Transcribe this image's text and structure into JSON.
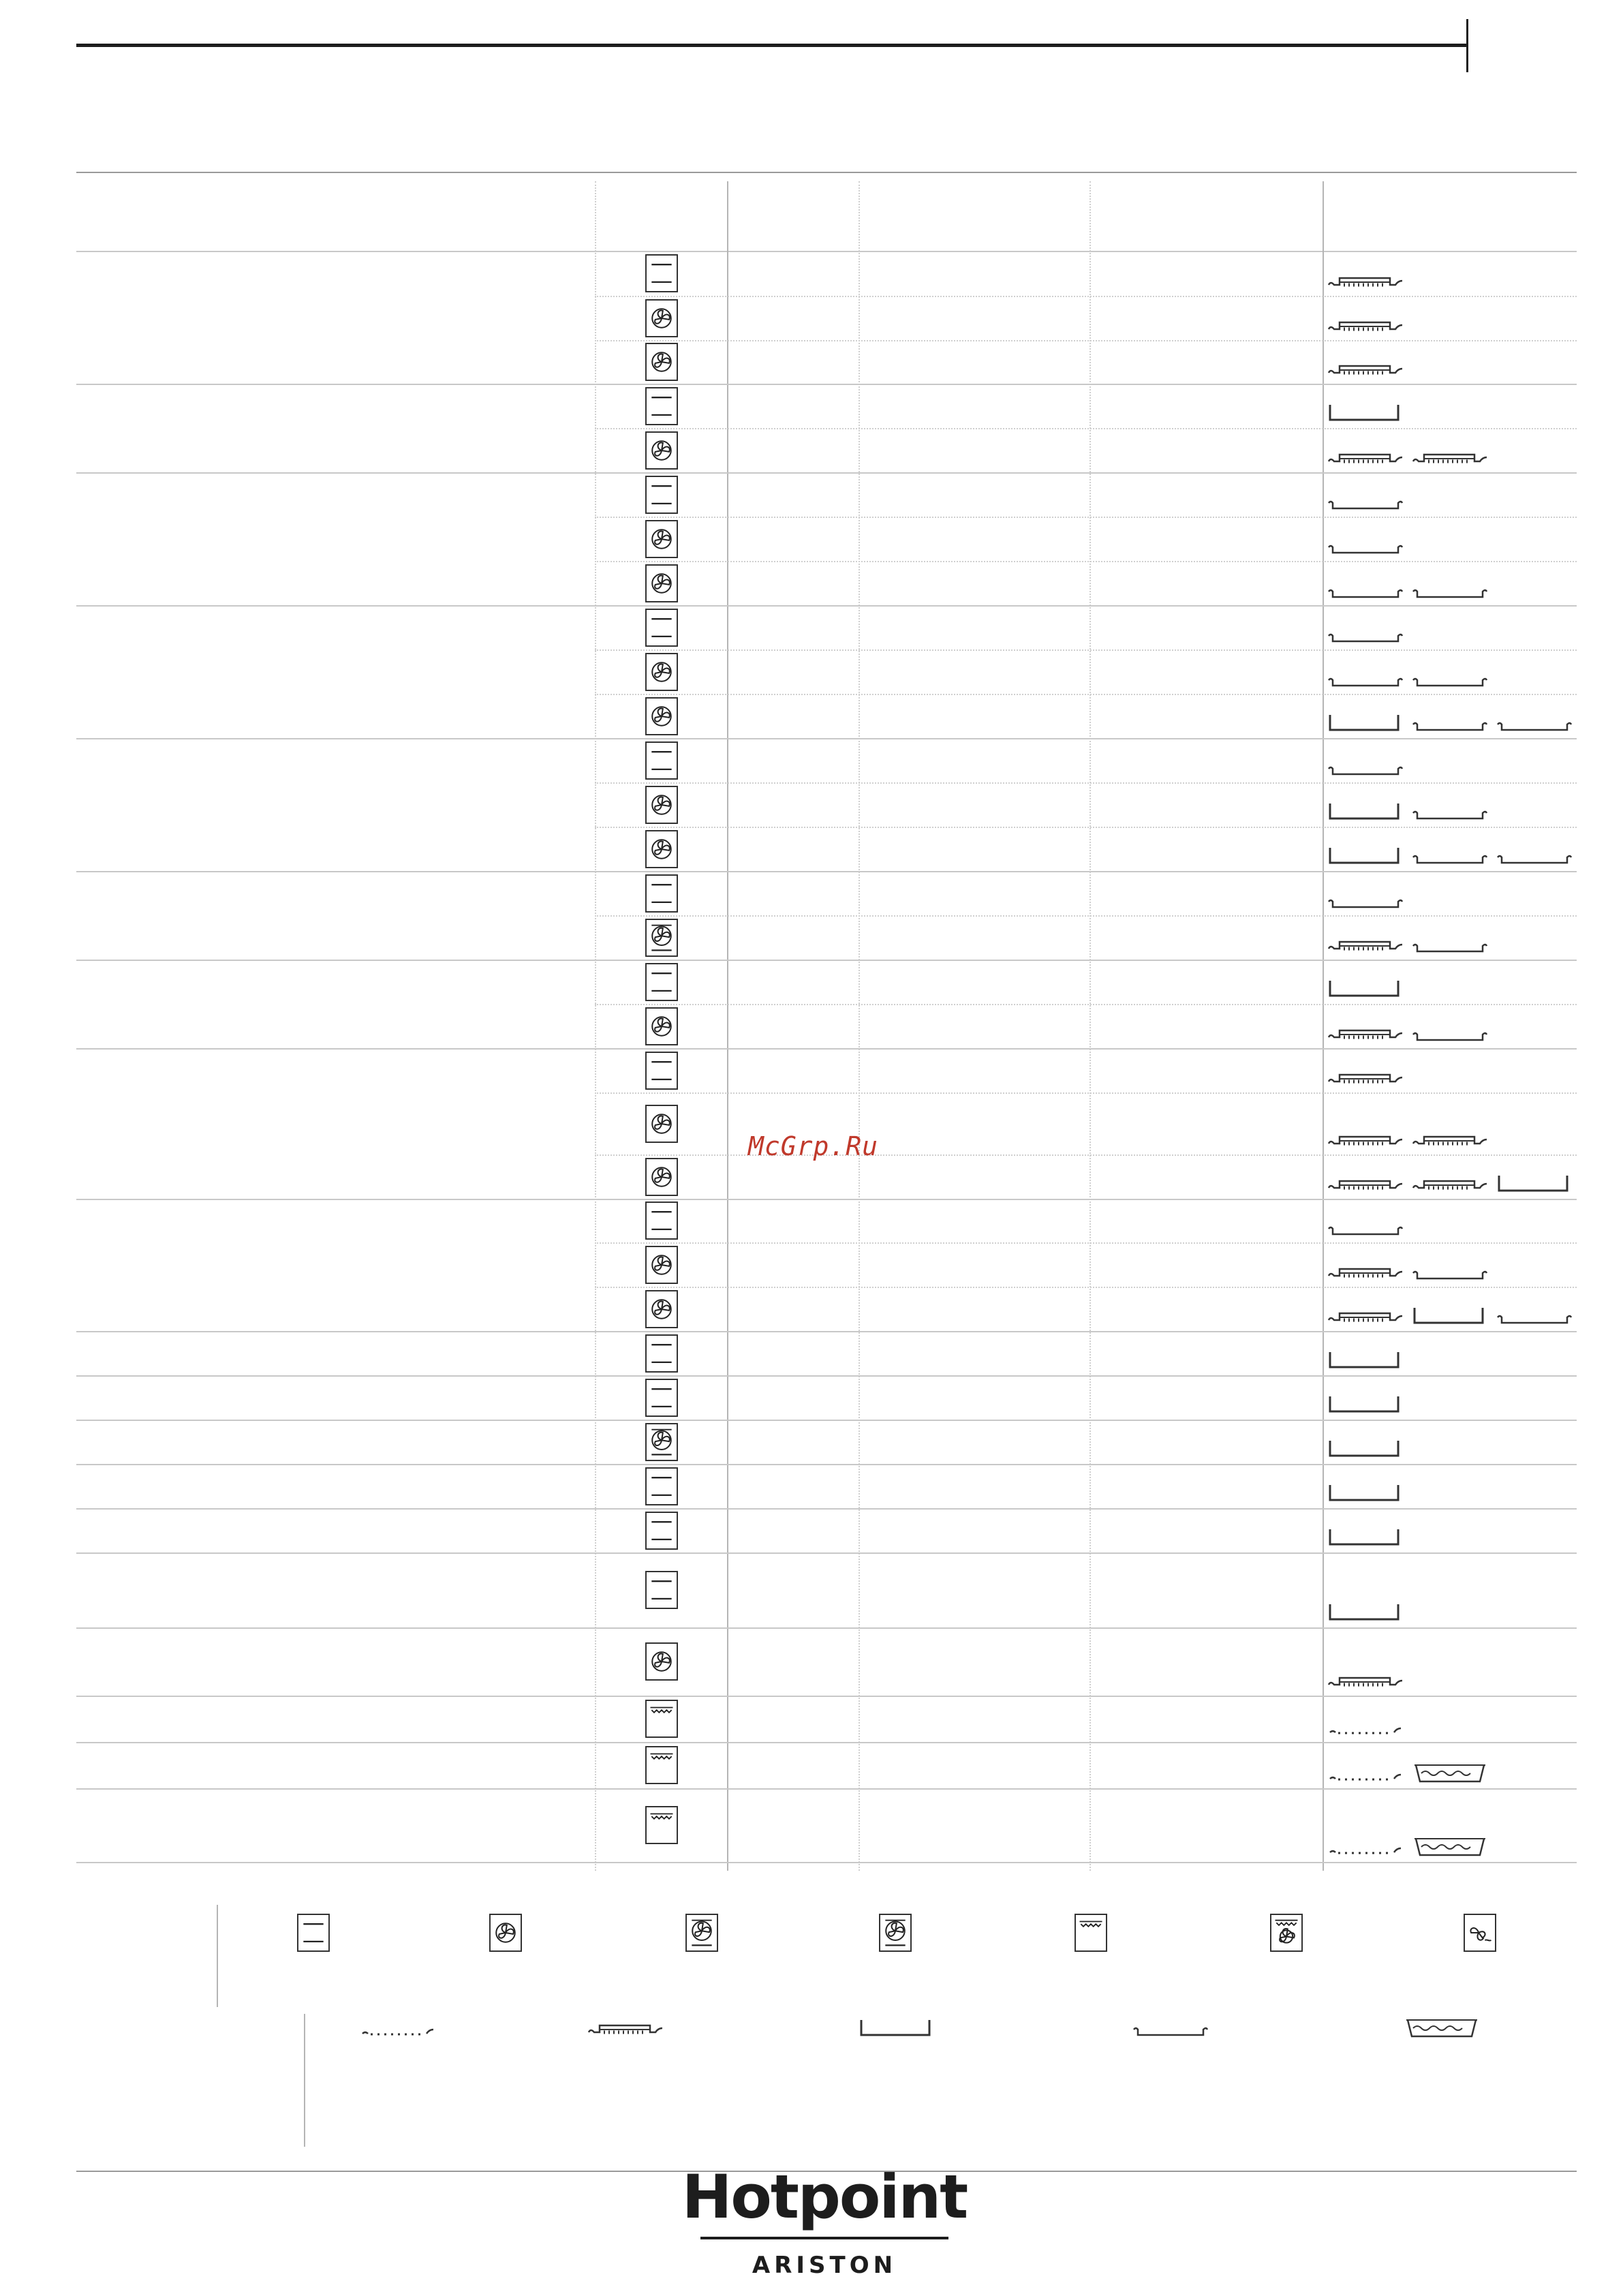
{
  "watermark": "McGrp.Ru",
  "brand": {
    "name": "Hotpoint",
    "sub": "ARISTON"
  },
  "icon_names": {
    "conv": "conventional-oven-icon",
    "fan": "fan-assisted-icon",
    "fanbot": "fan-with-bottom-heater-icon",
    "grill": "grill-icon",
    "turbogrill": "turbo-grill-icon",
    "eco": "eco-fan-icon"
  },
  "accessory_names": {
    "rack": "wire-shelf-icon",
    "tray": "baking-tray-icon",
    "deep": "deep-pan-icon",
    "flat": "flat-tray-icon",
    "dripping": "dripping-pan-with-water-icon"
  },
  "rows": [
    {
      "f": "conv",
      "acc": [
        "tray"
      ]
    },
    {
      "f": "fan",
      "acc": [
        "tray"
      ]
    },
    {
      "f": "fan",
      "acc": [
        "tray"
      ]
    },
    {
      "f": "conv",
      "acc": [
        "deep"
      ]
    },
    {
      "f": "fan",
      "acc": [
        "tray",
        "tray"
      ]
    },
    {
      "f": "conv",
      "acc": [
        "flat"
      ]
    },
    {
      "f": "fan",
      "acc": [
        "flat"
      ]
    },
    {
      "f": "fan",
      "acc": [
        "flat",
        "flat"
      ]
    },
    {
      "f": "conv",
      "acc": [
        "flat"
      ]
    },
    {
      "f": "fan",
      "acc": [
        "flat",
        "flat"
      ]
    },
    {
      "f": "fan",
      "acc": [
        "deep",
        "flat",
        "flat"
      ]
    },
    {
      "f": "conv",
      "acc": [
        "flat"
      ]
    },
    {
      "f": "fan",
      "acc": [
        "deep",
        "flat"
      ]
    },
    {
      "f": "fan",
      "acc": [
        "deep",
        "flat",
        "flat"
      ]
    },
    {
      "f": "conv",
      "acc": [
        "flat"
      ]
    },
    {
      "f": "fanbot",
      "acc": [
        "tray",
        "flat"
      ]
    },
    {
      "f": "conv",
      "acc": [
        "deep"
      ]
    },
    {
      "f": "fan",
      "acc": [
        "tray",
        "flat"
      ]
    },
    {
      "f": "conv",
      "acc": [
        "tray"
      ]
    },
    {
      "f": "fan",
      "acc": [
        "tray",
        "tray"
      ]
    },
    {
      "f": "fan",
      "acc": [
        "tray",
        "tray",
        "deep"
      ]
    },
    {
      "f": "conv",
      "acc": [
        "flat"
      ]
    },
    {
      "f": "fan",
      "acc": [
        "tray",
        "flat"
      ]
    },
    {
      "f": "fan",
      "acc": [
        "tray",
        "deep",
        "flat"
      ]
    },
    {
      "f": "conv",
      "acc": [
        "deep"
      ]
    },
    {
      "f": "conv",
      "acc": [
        "deep"
      ]
    },
    {
      "f": "fanbot",
      "acc": [
        "deep"
      ]
    },
    {
      "f": "conv",
      "acc": [
        "deep"
      ]
    },
    {
      "f": "conv",
      "acc": [
        "deep"
      ]
    },
    {
      "f": "conv",
      "acc": [
        "deep"
      ]
    },
    {
      "f": "fan",
      "acc": [
        "tray"
      ]
    },
    {
      "f": "grill",
      "acc": [
        "rack"
      ]
    },
    {
      "f": "grill",
      "acc": [
        "rack",
        "dripping"
      ]
    },
    {
      "f": "grill",
      "acc": [
        "rack",
        "dripping"
      ]
    }
  ],
  "legend_functions": [
    "conv",
    "fan",
    "fanbot",
    "fanbot",
    "grill",
    "turbogrill",
    "eco"
  ],
  "legend_accessories": [
    "rack",
    "tray",
    "deep",
    "flat",
    "dripping"
  ]
}
